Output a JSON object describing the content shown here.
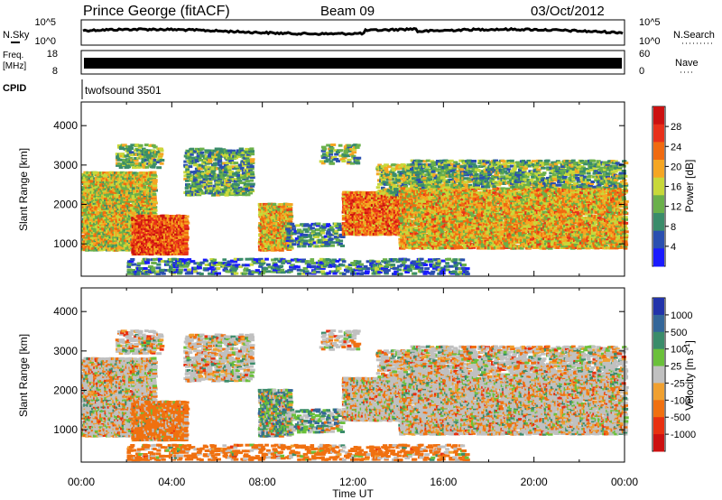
{
  "header": {
    "station": "Prince George (fitACF)",
    "beam": "Beam 09",
    "date": "03/Oct/2012"
  },
  "status_panels": {
    "nsky_label": "N.Sky",
    "nsky_ticks": [
      "10^5",
      "10^0"
    ],
    "nsearch_label": "N.Search",
    "nsearch_ticks": [
      "10^5",
      "10^0"
    ],
    "freq_label": "Freq.",
    "freq_unit": "[MHz]",
    "freq_ticks": [
      "18",
      "8"
    ],
    "nave_label": "Nave",
    "nave_ticks": [
      "60",
      "0"
    ],
    "cpid_label": "CPID",
    "cpid_value": "twofsound 3501"
  },
  "colors": {
    "power_scale": [
      "#1a1aff",
      "#2a4fb0",
      "#3a8c6a",
      "#6ab04a",
      "#c8d83a",
      "#f5a623",
      "#f06a10",
      "#e8301a",
      "#cc1010"
    ],
    "velocity_scale": [
      "#2233aa",
      "#336699",
      "#3a8c6a",
      "#6ac03a",
      "#c0c0c0",
      "#f0a030",
      "#f07010",
      "#e83010",
      "#cc1010"
    ]
  },
  "chart_data": [
    {
      "type": "heatmap",
      "name": "power",
      "ylabel": "Slant Range [km]",
      "xlabel": "Time UT",
      "ylim": [
        180,
        4600
      ],
      "xlim": [
        0,
        24
      ],
      "xticks": [
        "00:00",
        "04:00",
        "08:00",
        "12:00",
        "16:00",
        "20:00",
        "00:00"
      ],
      "yticks": [
        "1000",
        "2000",
        "3000",
        "4000"
      ],
      "colorbar": {
        "label": "Power [dB]",
        "ticks": [
          "4",
          "8",
          "12",
          "16",
          "20",
          "24",
          "28"
        ]
      }
    },
    {
      "type": "heatmap",
      "name": "velocity",
      "ylabel": "Slant Range [km]",
      "xlabel": "Time UT",
      "ylim": [
        180,
        4600
      ],
      "xlim": [
        0,
        24
      ],
      "xticks": [
        "00:00",
        "04:00",
        "08:00",
        "12:00",
        "16:00",
        "20:00",
        "00:00"
      ],
      "yticks": [
        "1000",
        "2000",
        "3000",
        "4000"
      ],
      "colorbar": {
        "label": "Velocity [m s",
        "label_sup": "-1",
        "label_end": "]",
        "ticks": [
          "1000",
          "500",
          "100",
          "25",
          "-25",
          "-100",
          "-500",
          "-1000"
        ]
      }
    }
  ]
}
